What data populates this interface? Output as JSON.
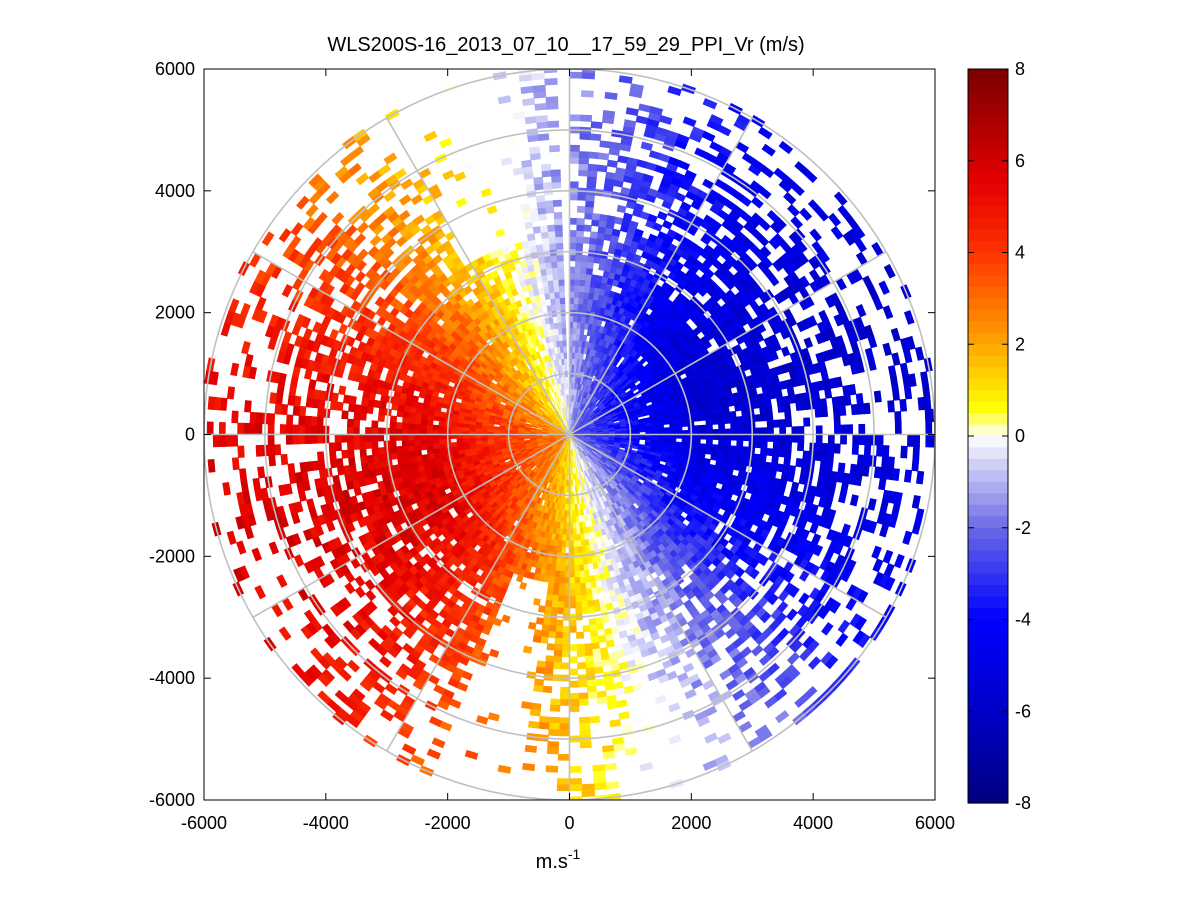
{
  "chart_data": {
    "type": "heatmap",
    "subtype": "polar-ppi",
    "title": "WLS200S-16_2013_07_10__17_59_29_PPI_Vr (m/s)",
    "xlabel_base": "m.s",
    "xlabel_exp": "-1",
    "xlim": [
      -6000,
      6000
    ],
    "ylim": [
      -6000,
      6000
    ],
    "xticks": [
      -6000,
      -4000,
      -2000,
      0,
      2000,
      4000,
      6000
    ],
    "yticks": [
      -6000,
      -4000,
      -2000,
      0,
      2000,
      4000,
      6000
    ],
    "xtick_labels": [
      "-6000",
      "-4000",
      "-2000",
      "0",
      "2000",
      "4000",
      "6000"
    ],
    "ytick_labels": [
      "-6000",
      "-4000",
      "-2000",
      "0",
      "2000",
      "4000",
      "6000"
    ],
    "polar_grid": {
      "ring_step_m": 1000,
      "max_range_m": 6000,
      "spoke_step_deg": 30
    },
    "colorbar": {
      "min": -8,
      "max": 8,
      "ticks": [
        8,
        6,
        4,
        2,
        0,
        -2,
        -4,
        -6,
        -8
      ],
      "tick_labels": [
        "8",
        "6",
        "4",
        "2",
        "0",
        "-2",
        "-4",
        "-6",
        "-8"
      ],
      "stops": [
        {
          "v": -8,
          "color": "#000080"
        },
        {
          "v": -6,
          "color": "#0000c8"
        },
        {
          "v": -4,
          "color": "#0000ff"
        },
        {
          "v": -2,
          "color": "#6a6ae6"
        },
        {
          "v": 0,
          "color": "#ffffff"
        },
        {
          "v": 0.6,
          "color": "#ffff00"
        },
        {
          "v": 2,
          "color": "#ffa500"
        },
        {
          "v": 4,
          "color": "#ff3200"
        },
        {
          "v": 5.5,
          "color": "#e60000"
        },
        {
          "v": 8,
          "color": "#780000"
        }
      ]
    },
    "radial_velocity_pattern": {
      "units": "m/s",
      "approaching_direction_deg": 75,
      "peak_speed_m_s": 5.7,
      "scan_start_deg": 0,
      "scan_end_deg": 358,
      "gate_spacing_m": 100,
      "beam_step_deg": 2,
      "range_start_m": 50,
      "near_full_coverage_m": 2600,
      "max_valid_range_m": 6000,
      "sparse_gaps": [
        {
          "from_deg": 327,
          "to_deg": 347,
          "beyond_m": 3200
        },
        {
          "from_deg": 188,
          "to_deg": 202,
          "beyond_m": 2400
        },
        {
          "from_deg": 155,
          "to_deg": 168,
          "beyond_m": 4400
        }
      ]
    }
  }
}
